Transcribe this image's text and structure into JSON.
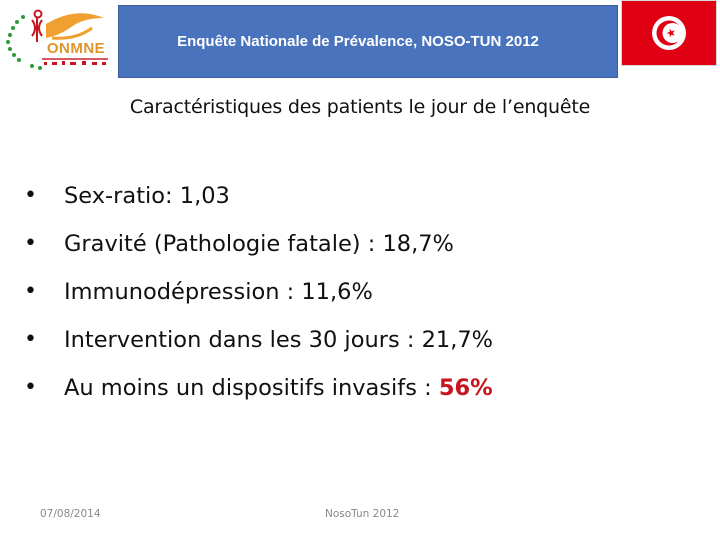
{
  "header": {
    "logo_text": "ONMNE",
    "banner_title": "Enquête Nationale de Prévalence, NOSO-TUN 2012"
  },
  "slide": {
    "title": "Caractéristiques des patients le jour de l’enquête",
    "bullets": [
      {
        "text": "Sex-ratio: 1,03",
        "highlight": ""
      },
      {
        "text": "Gravité (Pathologie fatale) : 18,7%",
        "highlight": ""
      },
      {
        "text": "Immunodépression : 11,6%",
        "highlight": ""
      },
      {
        "text": "Intervention dans les 30 jours : 21,7%",
        "highlight": ""
      },
      {
        "text": "Au moins un dispositifs invasifs : ",
        "highlight": "56%"
      }
    ],
    "bullet_symbol": "•"
  },
  "footer": {
    "date": "07/08/2014",
    "center": "NosoTun 2012"
  },
  "colors": {
    "banner": "#4a73bd",
    "flag_red": "#e00013",
    "highlight": "#c8141e",
    "logo_orange": "#f0a030",
    "logo_green": "#2e9a3a"
  }
}
